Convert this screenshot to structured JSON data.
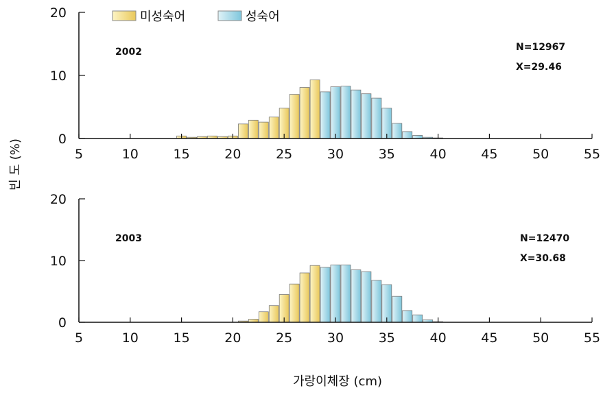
{
  "chart_data": [
    {
      "type": "bar",
      "panel_label": "2002",
      "stats": [
        "N=12967",
        "X=29.46"
      ],
      "x": [
        15,
        16,
        17,
        18,
        19,
        20,
        21,
        22,
        23,
        24,
        25,
        26,
        27,
        28,
        29,
        30,
        31,
        32,
        33,
        34,
        35,
        36,
        37,
        38,
        39,
        40
      ],
      "series": [
        {
          "name": "미성숙어",
          "values": [
            0.4,
            0.2,
            0.3,
            0.4,
            0.3,
            0.4,
            2.3,
            2.9,
            2.6,
            3.4,
            4.8,
            7.0,
            8.1,
            9.3,
            0,
            0,
            0,
            0,
            0,
            0,
            0,
            0,
            0,
            0,
            0,
            0
          ]
        },
        {
          "name": "성숙어",
          "values": [
            0,
            0,
            0,
            0,
            0,
            0,
            0,
            0,
            0,
            0,
            0,
            0,
            0,
            0,
            7.4,
            8.2,
            8.3,
            7.7,
            7.1,
            6.4,
            4.8,
            2.4,
            1.1,
            0.5,
            0.2,
            0.1
          ]
        }
      ],
      "xlim": [
        5,
        55
      ],
      "ylim": [
        0,
        20
      ],
      "xticks": [
        "5",
        "10",
        "15",
        "20",
        "25",
        "30",
        "35",
        "40",
        "45",
        "50",
        "55"
      ],
      "yticks": [
        "0",
        "10",
        "20"
      ]
    },
    {
      "type": "bar",
      "panel_label": "2003",
      "stats": [
        "N=12470",
        "X=30.68"
      ],
      "x": [
        21,
        22,
        23,
        24,
        25,
        26,
        27,
        28,
        29,
        30,
        31,
        32,
        33,
        34,
        35,
        36,
        37,
        38,
        39,
        40
      ],
      "series": [
        {
          "name": "미성숙어",
          "values": [
            0.2,
            0.5,
            1.7,
            2.7,
            4.5,
            6.2,
            8.0,
            9.2,
            0,
            0,
            0,
            0,
            0,
            0,
            0,
            0,
            0,
            0,
            0,
            0
          ]
        },
        {
          "name": "성숙어",
          "values": [
            0,
            0,
            0,
            0,
            0,
            0,
            0,
            0,
            8.9,
            9.3,
            9.3,
            8.5,
            8.2,
            6.8,
            6.1,
            4.2,
            1.9,
            1.2,
            0.4,
            0.1
          ]
        }
      ],
      "xlim": [
        5,
        55
      ],
      "ylim": [
        0,
        20
      ],
      "xticks": [
        "5",
        "10",
        "15",
        "20",
        "25",
        "30",
        "35",
        "40",
        "45",
        "50",
        "55"
      ],
      "yticks": [
        "0",
        "10",
        "20"
      ]
    }
  ],
  "legend": [
    {
      "label": "미성숙어",
      "color": "#f1d56e"
    },
    {
      "label": "성숙어",
      "color": "#8fd0e4"
    }
  ],
  "ylabel": "빈 도 (%)",
  "xlabel": "가랑이체장 (cm)",
  "colors": {
    "immature_fill": "#f3dc82",
    "mature_fill": "#9fd6e6",
    "bar_stroke": "#7a7a7a",
    "axis": "#111111"
  }
}
